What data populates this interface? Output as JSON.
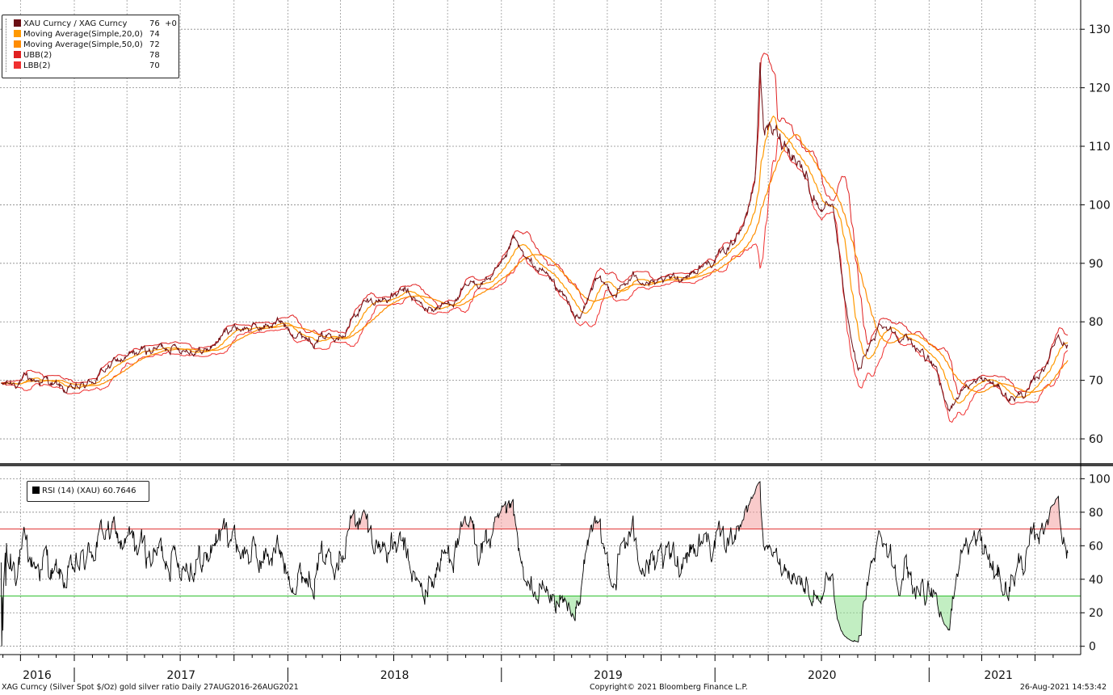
{
  "chart_data": [
    {
      "type": "line",
      "title": "",
      "y_axis": {
        "position": "right",
        "ticks": [
          60,
          70,
          80,
          90,
          100,
          110,
          120,
          130
        ],
        "range": [
          56,
          135
        ]
      },
      "x_axis": {
        "range": [
          "2016-08-27",
          "2021-08-26"
        ],
        "year_labels": [
          "2016",
          "2017",
          "2018",
          "2019",
          "2020",
          "2021"
        ]
      },
      "grid": true,
      "legend_placement": "top-left",
      "series": [
        {
          "name": "XAU Curncy / XAG Curncy",
          "last_value": "76",
          "change": "+0",
          "color": "#6b0f14",
          "anchors": [
            [
              "2016-08-27",
              69
            ],
            [
              "2016-10-01",
              70
            ],
            [
              "2016-11-15",
              70
            ],
            [
              "2016-12-20",
              68
            ],
            [
              "2017-01-20",
              69
            ],
            [
              "2017-03-10",
              73
            ],
            [
              "2017-05-01",
              75
            ],
            [
              "2017-06-15",
              76
            ],
            [
              "2017-08-15",
              75
            ],
            [
              "2017-09-25",
              79
            ],
            [
              "2017-11-20",
              79
            ],
            [
              "2017-12-15",
              80
            ],
            [
              "2018-01-20",
              78
            ],
            [
              "2018-02-20",
              77
            ],
            [
              "2018-04-10",
              79
            ],
            [
              "2018-05-10",
              83
            ],
            [
              "2018-06-15",
              84
            ],
            [
              "2018-07-20",
              85
            ],
            [
              "2018-08-25",
              82
            ],
            [
              "2018-10-01",
              83
            ],
            [
              "2018-11-10",
              86
            ],
            [
              "2018-12-20",
              88
            ],
            [
              "2019-01-10",
              90
            ],
            [
              "2019-01-20",
              94
            ],
            [
              "2019-02-15",
              90
            ],
            [
              "2019-03-20",
              88
            ],
            [
              "2019-04-20",
              84
            ],
            [
              "2019-05-15",
              80
            ],
            [
              "2019-06-10",
              87
            ],
            [
              "2019-07-15",
              85
            ],
            [
              "2019-08-20",
              88
            ],
            [
              "2019-09-25",
              86
            ],
            [
              "2019-11-10",
              88
            ],
            [
              "2019-12-20",
              90
            ],
            [
              "2020-01-20",
              92
            ],
            [
              "2020-02-25",
              98
            ],
            [
              "2020-03-10",
              105
            ],
            [
              "2020-03-18",
              124
            ],
            [
              "2020-03-25",
              113
            ],
            [
              "2020-04-15",
              112
            ],
            [
              "2020-05-10",
              110
            ],
            [
              "2020-06-05",
              105
            ],
            [
              "2020-06-25",
              100
            ],
            [
              "2020-07-20",
              99
            ],
            [
              "2020-08-15",
              80
            ],
            [
              "2020-09-01",
              72
            ],
            [
              "2020-09-20",
              75
            ],
            [
              "2020-10-10",
              80
            ],
            [
              "2020-11-10",
              78
            ],
            [
              "2020-12-20",
              75
            ],
            [
              "2021-01-10",
              72
            ],
            [
              "2021-02-01",
              65
            ],
            [
              "2021-03-01",
              69
            ],
            [
              "2021-04-10",
              70
            ],
            [
              "2021-05-20",
              67
            ],
            [
              "2021-06-20",
              68
            ],
            [
              "2021-07-15",
              72
            ],
            [
              "2021-08-10",
              78
            ],
            [
              "2021-08-26",
              76
            ]
          ]
        },
        {
          "name": "Moving Average(Simple,20,0)",
          "last_value": "74",
          "color": "#ff9900",
          "period": 20
        },
        {
          "name": "Moving Average(Simple,50,0)",
          "last_value": "72",
          "color": "#ff8c00",
          "period": 50
        },
        {
          "name": "UBB(2)",
          "last_value": "78",
          "color": "#e02020"
        },
        {
          "name": "LBB(2)",
          "last_value": "70",
          "color": "#f03030"
        }
      ]
    },
    {
      "type": "line",
      "y_axis": {
        "position": "right",
        "ticks": [
          0,
          20,
          40,
          60,
          80,
          100
        ],
        "range": [
          -4,
          105
        ]
      },
      "reference_lines": [
        {
          "value": 70,
          "color": "#e03030"
        },
        {
          "value": 30,
          "color": "#30c030"
        }
      ],
      "legend_placement": "top-left",
      "series": [
        {
          "name": "RSI (14) (XAU)",
          "last_value": "60.7646",
          "color": "#000000"
        }
      ]
    }
  ],
  "footer": {
    "left": "XAG Curncy (Silver Spot  $/Oz) gold silver ratio  Daily 27AUG2016-26AUG2021",
    "center": "Copyright© 2021 Bloomberg Finance L.P.",
    "right": "26-Aug-2021 14:53:42"
  }
}
